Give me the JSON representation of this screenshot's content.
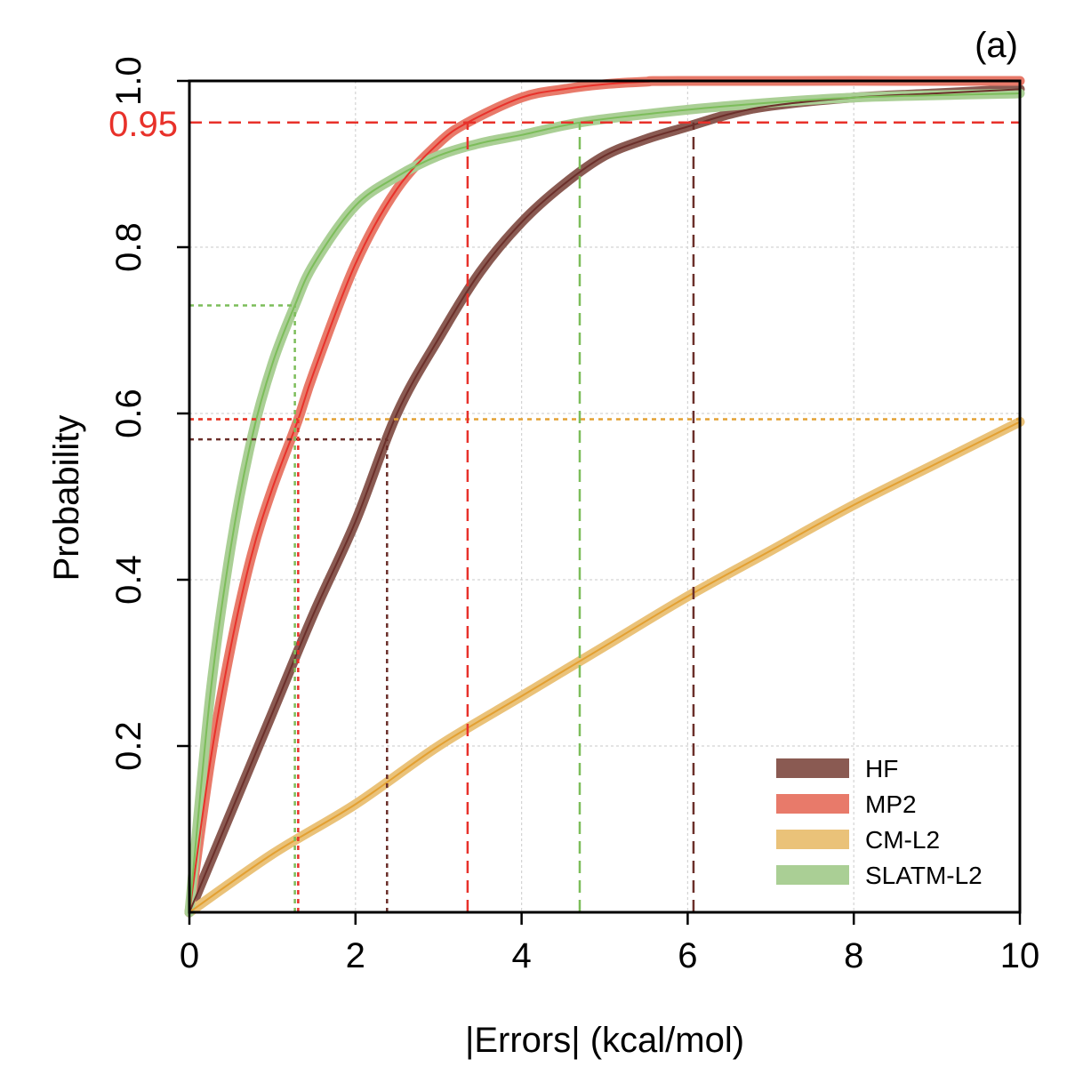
{
  "chart_data": {
    "type": "line",
    "panel_label": "(a)",
    "xlabel": "|Errors| (kcal/mol)",
    "ylabel": "Probability",
    "xlim": [
      0,
      10
    ],
    "ylim": [
      0,
      1.0
    ],
    "x_ticks": [
      0,
      2,
      4,
      6,
      8,
      10
    ],
    "x_tick_labels": [
      "0",
      "2",
      "4",
      "6",
      "8",
      "10"
    ],
    "y_ticks": [
      0.2,
      0.4,
      0.6,
      0.8,
      1.0
    ],
    "y_tick_labels": [
      "0.2",
      "0.4",
      "0.6",
      "0.8",
      "1.0"
    ],
    "grid": true,
    "threshold": {
      "value": 0.95,
      "label": "0.95",
      "color": "#e8312a"
    },
    "mean_line_y": 0.593,
    "legend_position": "bottom-right",
    "series": [
      {
        "name": "HF",
        "color": "#6b2f2a",
        "band_color": "#8a5a52",
        "x": [
          0,
          0.5,
          1.0,
          1.5,
          2.0,
          2.5,
          3.0,
          3.5,
          4.0,
          4.5,
          5.0,
          5.5,
          6.0,
          6.5,
          7.0,
          8.0,
          9.0,
          10.0
        ],
        "y": [
          0,
          0.12,
          0.24,
          0.36,
          0.47,
          0.6,
          0.69,
          0.77,
          0.83,
          0.875,
          0.91,
          0.93,
          0.945,
          0.96,
          0.97,
          0.98,
          0.985,
          0.99
        ],
        "q95": 6.07,
        "mae": 2.38
      },
      {
        "name": "MP2",
        "color": "#e8312a",
        "band_color": "#e87a6a",
        "x": [
          0,
          0.25,
          0.5,
          0.75,
          1.0,
          1.3,
          1.5,
          2.0,
          2.5,
          3.0,
          3.35,
          4.0,
          4.5,
          5.0,
          5.5,
          6.0,
          10.0
        ],
        "y": [
          0,
          0.18,
          0.32,
          0.43,
          0.51,
          0.59,
          0.65,
          0.78,
          0.87,
          0.925,
          0.95,
          0.98,
          0.99,
          0.996,
          0.999,
          1.0,
          1.0
        ],
        "q95": 3.35,
        "mae": 1.31
      },
      {
        "name": "CM-L2",
        "color": "#e3a032",
        "band_color": "#eac279",
        "x": [
          0,
          1,
          2,
          3,
          4,
          5,
          6,
          7,
          8,
          9,
          10
        ],
        "y": [
          0,
          0.07,
          0.13,
          0.2,
          0.26,
          0.32,
          0.38,
          0.435,
          0.49,
          0.54,
          0.59
        ],
        "mae": 10.0
      },
      {
        "name": "SLATM-L2",
        "color": "#7cbd5a",
        "band_color": "#aacf95",
        "x": [
          0,
          0.25,
          0.5,
          0.75,
          1.0,
          1.27,
          1.5,
          2.0,
          2.5,
          3.0,
          3.5,
          4.0,
          4.7,
          5.5,
          6.5,
          8.0,
          10.0
        ],
        "y": [
          0,
          0.26,
          0.44,
          0.57,
          0.66,
          0.73,
          0.78,
          0.85,
          0.885,
          0.91,
          0.925,
          0.935,
          0.95,
          0.96,
          0.97,
          0.98,
          0.985
        ],
        "q95": 4.7,
        "mae": 1.27
      }
    ]
  }
}
